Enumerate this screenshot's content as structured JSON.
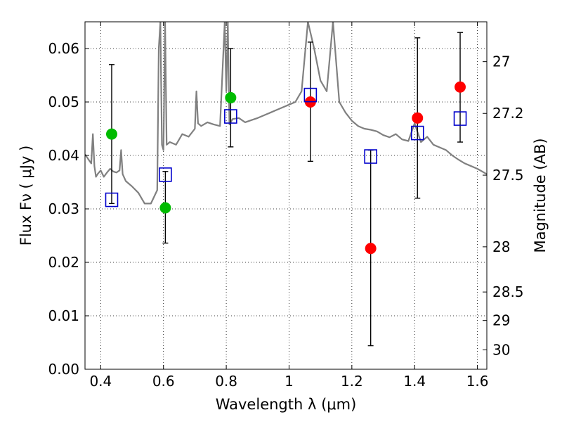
{
  "chart_data": {
    "type": "scatter",
    "xlabel": "Wavelength  λ (μm)",
    "ylabel": "Flux  Fν  ( μJy )",
    "y2label": "Magnitude (AB)",
    "xlim": [
      0.35,
      1.63
    ],
    "ylim": [
      0.0,
      0.065
    ],
    "grid": true,
    "grid_style": "dotted",
    "x_ticks": [
      {
        "value": 0.4,
        "label": "0.4"
      },
      {
        "value": 0.6,
        "label": "0.6"
      },
      {
        "value": 0.8,
        "label": "0.8"
      },
      {
        "value": 1.0,
        "label": "1"
      },
      {
        "value": 1.2,
        "label": "1.2"
      },
      {
        "value": 1.4,
        "label": "1.4"
      },
      {
        "value": 1.6,
        "label": "1.6"
      }
    ],
    "y_ticks": [
      {
        "value": 0.0,
        "label": "0.00"
      },
      {
        "value": 0.01,
        "label": "0.01"
      },
      {
        "value": 0.02,
        "label": "0.02"
      },
      {
        "value": 0.03,
        "label": "0.03"
      },
      {
        "value": 0.04,
        "label": "0.04"
      },
      {
        "value": 0.05,
        "label": "0.05"
      },
      {
        "value": 0.06,
        "label": "0.06"
      }
    ],
    "y2_ticks": [
      {
        "value": 27,
        "label": "27"
      },
      {
        "value": 27.2,
        "label": "27.2"
      },
      {
        "value": 27.5,
        "label": "27.5"
      },
      {
        "value": 28,
        "label": "28"
      },
      {
        "value": 28.5,
        "label": "28.5"
      },
      {
        "value": 29,
        "label": "29"
      },
      {
        "value": 30,
        "label": "30"
      }
    ],
    "series": [
      {
        "marker": "circle",
        "color": "#00bb00",
        "points": [
          {
            "x": 0.435,
            "y": 0.044,
            "yerr": [
              0.031,
              0.057
            ]
          },
          {
            "x": 0.606,
            "y": 0.0302,
            "yerr": [
              0.0236,
              0.037
            ]
          },
          {
            "x": 0.814,
            "y": 0.0508,
            "yerr": [
              0.0416,
              0.06
            ]
          }
        ]
      },
      {
        "marker": "circle",
        "color": "#ff0000",
        "points": [
          {
            "x": 1.068,
            "y": 0.05,
            "yerr": [
              0.0389,
              0.0612
            ]
          },
          {
            "x": 1.26,
            "y": 0.0226,
            "yerr": [
              0.0044,
              0.041
            ]
          },
          {
            "x": 1.409,
            "y": 0.047,
            "yerr": [
              0.032,
              0.062
            ]
          },
          {
            "x": 1.545,
            "y": 0.0528,
            "yerr": [
              0.0425,
              0.063
            ]
          }
        ]
      },
      {
        "marker": "open-square",
        "color": "#0000cc",
        "points": [
          {
            "x": 0.435,
            "y": 0.0317
          },
          {
            "x": 0.606,
            "y": 0.0364
          },
          {
            "x": 0.814,
            "y": 0.0473
          },
          {
            "x": 1.068,
            "y": 0.0513
          },
          {
            "x": 1.26,
            "y": 0.0398
          },
          {
            "x": 1.409,
            "y": 0.0442
          },
          {
            "x": 1.545,
            "y": 0.0469
          }
        ]
      }
    ],
    "spectrum": {
      "color": "#808080",
      "x": [
        0.35,
        0.37,
        0.375,
        0.38,
        0.385,
        0.39,
        0.4,
        0.41,
        0.42,
        0.43,
        0.44,
        0.45,
        0.46,
        0.465,
        0.47,
        0.48,
        0.5,
        0.52,
        0.54,
        0.56,
        0.58,
        0.585,
        0.59,
        0.595,
        0.6,
        0.605,
        0.61,
        0.62,
        0.64,
        0.66,
        0.68,
        0.7,
        0.705,
        0.71,
        0.72,
        0.74,
        0.76,
        0.78,
        0.795,
        0.8,
        0.805,
        0.81,
        0.82,
        0.84,
        0.86,
        0.88,
        0.9,
        0.92,
        0.94,
        0.96,
        0.98,
        1.0,
        1.02,
        1.04,
        1.06,
        1.08,
        1.1,
        1.12,
        1.14,
        1.16,
        1.18,
        1.2,
        1.22,
        1.24,
        1.26,
        1.28,
        1.3,
        1.32,
        1.34,
        1.36,
        1.38,
        1.4,
        1.42,
        1.44,
        1.46,
        1.48,
        1.5,
        1.52,
        1.54,
        1.56,
        1.58,
        1.6,
        1.63
      ],
      "y": [
        0.0402,
        0.0385,
        0.044,
        0.038,
        0.036,
        0.0365,
        0.0372,
        0.036,
        0.0368,
        0.0375,
        0.037,
        0.0368,
        0.0372,
        0.041,
        0.0365,
        0.0352,
        0.0342,
        0.033,
        0.031,
        0.031,
        0.0335,
        0.06,
        0.065,
        0.042,
        0.041,
        0.065,
        0.042,
        0.0425,
        0.042,
        0.044,
        0.0435,
        0.045,
        0.052,
        0.046,
        0.0455,
        0.0462,
        0.0458,
        0.0455,
        0.065,
        0.052,
        0.065,
        0.0458,
        0.0468,
        0.047,
        0.0462,
        0.0466,
        0.047,
        0.0475,
        0.048,
        0.0485,
        0.049,
        0.0495,
        0.05,
        0.052,
        0.065,
        0.06,
        0.054,
        0.052,
        0.065,
        0.05,
        0.048,
        0.0465,
        0.0455,
        0.045,
        0.0448,
        0.0445,
        0.0438,
        0.0434,
        0.044,
        0.043,
        0.0427,
        0.046,
        0.0425,
        0.0435,
        0.042,
        0.0415,
        0.041,
        0.04,
        0.0392,
        0.0385,
        0.038,
        0.0375,
        0.0365
      ]
    }
  }
}
